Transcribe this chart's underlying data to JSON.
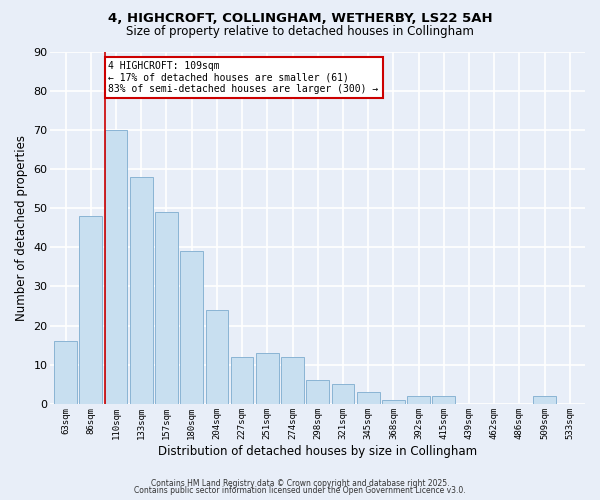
{
  "title1": "4, HIGHCROFT, COLLINGHAM, WETHERBY, LS22 5AH",
  "title2": "Size of property relative to detached houses in Collingham",
  "xlabel": "Distribution of detached houses by size in Collingham",
  "ylabel": "Number of detached properties",
  "categories": [
    "63sqm",
    "86sqm",
    "110sqm",
    "133sqm",
    "157sqm",
    "180sqm",
    "204sqm",
    "227sqm",
    "251sqm",
    "274sqm",
    "298sqm",
    "321sqm",
    "345sqm",
    "368sqm",
    "392sqm",
    "415sqm",
    "439sqm",
    "462sqm",
    "486sqm",
    "509sqm",
    "533sqm"
  ],
  "values": [
    16,
    48,
    70,
    58,
    49,
    39,
    24,
    12,
    13,
    12,
    6,
    5,
    3,
    1,
    2,
    2,
    0,
    0,
    0,
    2,
    0
  ],
  "bar_color": "#c8dff0",
  "bar_edge_color": "#8ab4d4",
  "highlight_index": 2,
  "highlight_line_color": "#cc0000",
  "ylim": [
    0,
    90
  ],
  "yticks": [
    0,
    10,
    20,
    30,
    40,
    50,
    60,
    70,
    80,
    90
  ],
  "annotation_title": "4 HIGHCROFT: 109sqm",
  "annotation_line1": "← 17% of detached houses are smaller (61)",
  "annotation_line2": "83% of semi-detached houses are larger (300) →",
  "annotation_box_color": "#ffffff",
  "annotation_box_edge": "#cc0000",
  "footer1": "Contains HM Land Registry data © Crown copyright and database right 2025.",
  "footer2": "Contains public sector information licensed under the Open Government Licence v3.0.",
  "background_color": "#e8eef8",
  "grid_color": "#ffffff"
}
